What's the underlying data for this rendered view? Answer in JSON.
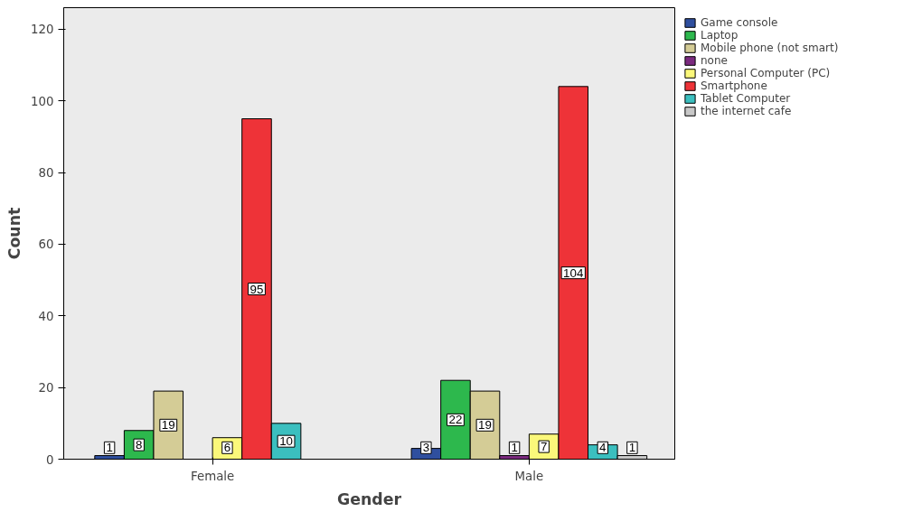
{
  "chart_data": {
    "type": "bar",
    "xlabel": "Gender",
    "ylabel": "Count",
    "categories": [
      "Female",
      "Male"
    ],
    "series": [
      {
        "name": "Game console",
        "color": "#2f4f9e",
        "values": [
          1,
          3
        ]
      },
      {
        "name": "Laptop",
        "color": "#2db84d",
        "values": [
          8,
          22
        ]
      },
      {
        "name": "Mobile phone (not smart)",
        "color": "#d4cc96",
        "values": [
          19,
          19
        ]
      },
      {
        "name": "none",
        "color": "#7b2a7f",
        "values": [
          null,
          1
        ]
      },
      {
        "name": "Personal Computer (PC)",
        "color": "#fbf87a",
        "values": [
          6,
          7
        ]
      },
      {
        "name": "Smartphone",
        "color": "#ee3338",
        "values": [
          95,
          104
        ]
      },
      {
        "name": "Tablet Computer",
        "color": "#3bbfbf",
        "values": [
          10,
          4
        ]
      },
      {
        "name": "the internet cafe",
        "color": "#c8c8c8",
        "values": [
          null,
          1
        ]
      }
    ],
    "ylim": [
      0,
      126
    ],
    "yticks": [
      0,
      20,
      40,
      60,
      80,
      100,
      120
    ],
    "grid": false,
    "legend": "top right",
    "data_labels": true
  }
}
